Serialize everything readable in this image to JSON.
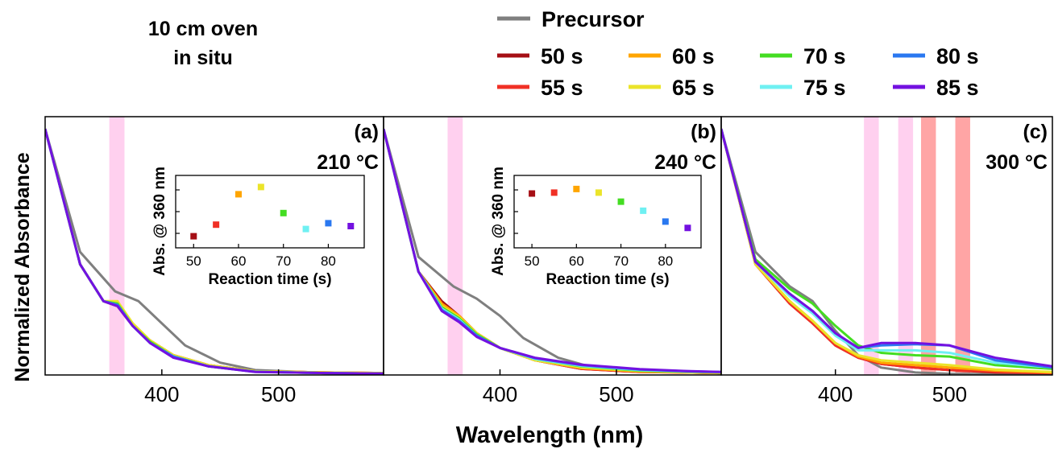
{
  "corner_note": [
    "10 cm oven",
    "in situ"
  ],
  "legend": {
    "precursor": {
      "label": "Precursor",
      "color": "#7f7f7f"
    },
    "times": [
      {
        "label": "50 s",
        "color": "#a50f15"
      },
      {
        "label": "60 s",
        "color": "#ffa500"
      },
      {
        "label": "70 s",
        "color": "#44dd22"
      },
      {
        "label": "80 s",
        "color": "#2a78f0"
      },
      {
        "label": "55 s",
        "color": "#f03025"
      },
      {
        "label": "65 s",
        "color": "#ebe42a"
      },
      {
        "label": "75 s",
        "color": "#6ff0f2"
      },
      {
        "label": "85 s",
        "color": "#7311e0"
      }
    ]
  },
  "chart_data": [
    {
      "type": "line",
      "panel_label": "(a)",
      "temperature": "210 °C",
      "xlabel": "Wavelength (nm)",
      "ylabel": "Normalized Absorbance",
      "xlim": [
        300,
        590
      ],
      "ylim": [
        0,
        1.05
      ],
      "xticks": [
        400,
        500
      ],
      "highlight_bands": [
        {
          "x": [
            355,
            368
          ],
          "color": "#ffd0ef"
        }
      ],
      "series": [
        {
          "name": "Precursor",
          "x": [
            300,
            330,
            360,
            380,
            400,
            420,
            450,
            480,
            520,
            560,
            590
          ],
          "y": [
            1.0,
            0.5,
            0.34,
            0.3,
            0.21,
            0.12,
            0.05,
            0.02,
            0.012,
            0.008,
            0.006
          ]
        },
        {
          "name": "50 s",
          "x": [
            300,
            330,
            350,
            362,
            375,
            390,
            410,
            440,
            480,
            540,
            590
          ],
          "y": [
            1.0,
            0.45,
            0.3,
            0.28,
            0.2,
            0.14,
            0.08,
            0.04,
            0.015,
            0.01,
            0.008
          ]
        },
        {
          "name": "55 s",
          "x": [
            300,
            330,
            350,
            362,
            375,
            390,
            410,
            440,
            480,
            540,
            590
          ],
          "y": [
            1.0,
            0.45,
            0.3,
            0.285,
            0.2,
            0.14,
            0.08,
            0.04,
            0.015,
            0.01,
            0.008
          ]
        },
        {
          "name": "60 s",
          "x": [
            300,
            330,
            350,
            362,
            375,
            390,
            410,
            440,
            480,
            540,
            590
          ],
          "y": [
            1.0,
            0.45,
            0.3,
            0.295,
            0.21,
            0.14,
            0.08,
            0.04,
            0.015,
            0.01,
            0.008
          ]
        },
        {
          "name": "65 s",
          "x": [
            300,
            330,
            350,
            362,
            375,
            390,
            410,
            440,
            480,
            540,
            590
          ],
          "y": [
            1.0,
            0.45,
            0.3,
            0.3,
            0.21,
            0.14,
            0.08,
            0.04,
            0.015,
            0.01,
            0.008
          ]
        },
        {
          "name": "70 s",
          "x": [
            300,
            330,
            350,
            362,
            375,
            390,
            410,
            440,
            480,
            540,
            590
          ],
          "y": [
            1.0,
            0.45,
            0.3,
            0.29,
            0.2,
            0.135,
            0.075,
            0.035,
            0.013,
            0.008,
            0.006
          ]
        },
        {
          "name": "75 s",
          "x": [
            300,
            330,
            350,
            362,
            375,
            390,
            410,
            440,
            480,
            540,
            590
          ],
          "y": [
            1.0,
            0.45,
            0.3,
            0.285,
            0.2,
            0.13,
            0.075,
            0.035,
            0.013,
            0.008,
            0.006
          ]
        },
        {
          "name": "80 s",
          "x": [
            300,
            330,
            350,
            362,
            375,
            390,
            410,
            440,
            480,
            540,
            590
          ],
          "y": [
            1.0,
            0.45,
            0.3,
            0.285,
            0.2,
            0.13,
            0.075,
            0.035,
            0.013,
            0.008,
            0.006
          ]
        },
        {
          "name": "85 s",
          "x": [
            300,
            330,
            350,
            362,
            375,
            390,
            410,
            440,
            480,
            540,
            590
          ],
          "y": [
            1.0,
            0.45,
            0.3,
            0.28,
            0.2,
            0.13,
            0.07,
            0.035,
            0.012,
            0.008,
            0.006
          ]
        }
      ],
      "inset": {
        "type": "scatter",
        "xlabel": "Reaction time (s)",
        "ylabel": "Abs. @ 360 nm",
        "xticks": [
          50,
          60,
          70,
          80
        ],
        "xlim": [
          46,
          88
        ],
        "ylim": [
          0.26,
          0.31
        ],
        "x": [
          50,
          55,
          60,
          65,
          70,
          75,
          80,
          85
        ],
        "y": [
          0.268,
          0.276,
          0.297,
          0.302,
          0.284,
          0.273,
          0.277,
          0.275
        ]
      }
    },
    {
      "type": "line",
      "panel_label": "(b)",
      "temperature": "240 °C",
      "xlabel": "Wavelength (nm)",
      "ylabel": "Normalized Absorbance",
      "xlim": [
        300,
        590
      ],
      "ylim": [
        0,
        1.05
      ],
      "xticks": [
        400,
        500
      ],
      "highlight_bands": [
        {
          "x": [
            355,
            368
          ],
          "color": "#ffd0ef"
        }
      ],
      "series": [
        {
          "name": "Precursor",
          "x": [
            300,
            330,
            360,
            380,
            400,
            420,
            450,
            480,
            520,
            560,
            590
          ],
          "y": [
            1.0,
            0.48,
            0.36,
            0.31,
            0.24,
            0.15,
            0.07,
            0.03,
            0.015,
            0.01,
            0.008
          ]
        },
        {
          "name": "50 s",
          "x": [
            300,
            330,
            350,
            365,
            380,
            400,
            430,
            470,
            520,
            560,
            590
          ],
          "y": [
            1.0,
            0.42,
            0.3,
            0.24,
            0.17,
            0.11,
            0.06,
            0.025,
            0.012,
            0.01,
            0.008
          ]
        },
        {
          "name": "55 s",
          "x": [
            300,
            330,
            350,
            365,
            380,
            400,
            430,
            470,
            520,
            560,
            590
          ],
          "y": [
            1.0,
            0.42,
            0.29,
            0.235,
            0.17,
            0.11,
            0.06,
            0.025,
            0.012,
            0.01,
            0.008
          ]
        },
        {
          "name": "60 s",
          "x": [
            300,
            330,
            350,
            365,
            380,
            400,
            430,
            470,
            520,
            560,
            590
          ],
          "y": [
            1.0,
            0.42,
            0.29,
            0.24,
            0.17,
            0.11,
            0.06,
            0.028,
            0.014,
            0.01,
            0.008
          ]
        },
        {
          "name": "65 s",
          "x": [
            300,
            330,
            350,
            365,
            380,
            400,
            430,
            470,
            520,
            560,
            590
          ],
          "y": [
            1.0,
            0.42,
            0.28,
            0.235,
            0.17,
            0.11,
            0.06,
            0.03,
            0.016,
            0.012,
            0.01
          ]
        },
        {
          "name": "70 s",
          "x": [
            300,
            330,
            350,
            365,
            380,
            400,
            430,
            470,
            520,
            560,
            590
          ],
          "y": [
            1.0,
            0.42,
            0.275,
            0.23,
            0.165,
            0.11,
            0.065,
            0.035,
            0.018,
            0.013,
            0.01
          ]
        },
        {
          "name": "75 s",
          "x": [
            300,
            330,
            350,
            365,
            380,
            400,
            430,
            470,
            520,
            560,
            590
          ],
          "y": [
            1.0,
            0.42,
            0.27,
            0.225,
            0.16,
            0.11,
            0.065,
            0.037,
            0.02,
            0.014,
            0.011
          ]
        },
        {
          "name": "80 s",
          "x": [
            300,
            330,
            350,
            365,
            380,
            400,
            430,
            470,
            520,
            560,
            590
          ],
          "y": [
            1.0,
            0.42,
            0.265,
            0.22,
            0.16,
            0.11,
            0.068,
            0.04,
            0.022,
            0.015,
            0.012
          ]
        },
        {
          "name": "85 s",
          "x": [
            300,
            330,
            350,
            365,
            380,
            400,
            430,
            470,
            520,
            560,
            590
          ],
          "y": [
            1.0,
            0.42,
            0.26,
            0.215,
            0.155,
            0.11,
            0.07,
            0.042,
            0.024,
            0.016,
            0.012
          ]
        }
      ],
      "inset": {
        "type": "scatter",
        "xlabel": "Reaction time (s)",
        "ylabel": "Abs. @ 360 nm",
        "xticks": [
          50,
          60,
          70,
          80
        ],
        "xlim": [
          46,
          88
        ],
        "ylim": [
          0.22,
          0.3
        ],
        "x": [
          50,
          55,
          60,
          65,
          70,
          75,
          80,
          85
        ],
        "y": [
          0.28,
          0.281,
          0.285,
          0.281,
          0.271,
          0.261,
          0.249,
          0.242
        ]
      }
    },
    {
      "type": "line",
      "panel_label": "(c)",
      "temperature": "300 °C",
      "xlabel": "Wavelength (nm)",
      "ylabel": "Normalized Absorbance",
      "xlim": [
        300,
        590
      ],
      "ylim": [
        0,
        1.05
      ],
      "xticks": [
        400,
        500
      ],
      "highlight_bands": [
        {
          "x": [
            425,
            438
          ],
          "color": "#ffd0ef"
        },
        {
          "x": [
            455,
            468
          ],
          "color": "#ffd0ef"
        },
        {
          "x": [
            475,
            488
          ],
          "color": "#ffa5a5"
        },
        {
          "x": [
            505,
            518
          ],
          "color": "#ffa5a5"
        }
      ],
      "series": [
        {
          "name": "Precursor",
          "x": [
            300,
            330,
            360,
            380,
            400,
            420,
            440,
            470,
            500,
            540,
            590
          ],
          "y": [
            1.0,
            0.5,
            0.36,
            0.3,
            0.18,
            0.08,
            0.03,
            0.01,
            0.005,
            0.003,
            0.002
          ]
        },
        {
          "name": "50 s",
          "x": [
            300,
            330,
            360,
            380,
            400,
            420,
            440,
            470,
            500,
            540,
            590
          ],
          "y": [
            1.0,
            0.45,
            0.29,
            0.21,
            0.12,
            0.07,
            0.045,
            0.03,
            0.02,
            0.01,
            0.008
          ]
        },
        {
          "name": "55 s",
          "x": [
            300,
            330,
            360,
            380,
            400,
            420,
            440,
            470,
            500,
            540,
            590
          ],
          "y": [
            1.0,
            0.45,
            0.29,
            0.21,
            0.12,
            0.07,
            0.045,
            0.03,
            0.02,
            0.012,
            0.008
          ]
        },
        {
          "name": "60 s",
          "x": [
            300,
            330,
            360,
            380,
            400,
            420,
            440,
            470,
            500,
            540,
            590
          ],
          "y": [
            1.0,
            0.45,
            0.3,
            0.22,
            0.13,
            0.075,
            0.05,
            0.04,
            0.03,
            0.018,
            0.01
          ]
        },
        {
          "name": "65 s",
          "x": [
            300,
            330,
            360,
            380,
            400,
            420,
            440,
            470,
            500,
            540,
            590
          ],
          "y": [
            1.0,
            0.45,
            0.3,
            0.22,
            0.13,
            0.08,
            0.06,
            0.05,
            0.04,
            0.022,
            0.012
          ]
        },
        {
          "name": "70 s",
          "x": [
            300,
            330,
            360,
            380,
            400,
            420,
            440,
            470,
            500,
            540,
            590
          ],
          "y": [
            1.0,
            0.47,
            0.35,
            0.29,
            0.2,
            0.12,
            0.09,
            0.08,
            0.075,
            0.04,
            0.025
          ]
        },
        {
          "name": "75 s",
          "x": [
            300,
            330,
            360,
            380,
            400,
            420,
            440,
            470,
            500,
            540,
            590
          ],
          "y": [
            1.0,
            0.46,
            0.32,
            0.25,
            0.16,
            0.1,
            0.1,
            0.1,
            0.09,
            0.05,
            0.03
          ]
        },
        {
          "name": "80 s",
          "x": [
            300,
            330,
            360,
            380,
            400,
            420,
            440,
            470,
            500,
            540,
            590
          ],
          "y": [
            1.0,
            0.46,
            0.33,
            0.26,
            0.17,
            0.11,
            0.12,
            0.125,
            0.12,
            0.06,
            0.03
          ]
        },
        {
          "name": "85 s",
          "x": [
            300,
            330,
            360,
            380,
            400,
            420,
            440,
            470,
            500,
            540,
            590
          ],
          "y": [
            1.0,
            0.46,
            0.33,
            0.26,
            0.17,
            0.11,
            0.13,
            0.13,
            0.12,
            0.07,
            0.035
          ]
        }
      ]
    }
  ]
}
